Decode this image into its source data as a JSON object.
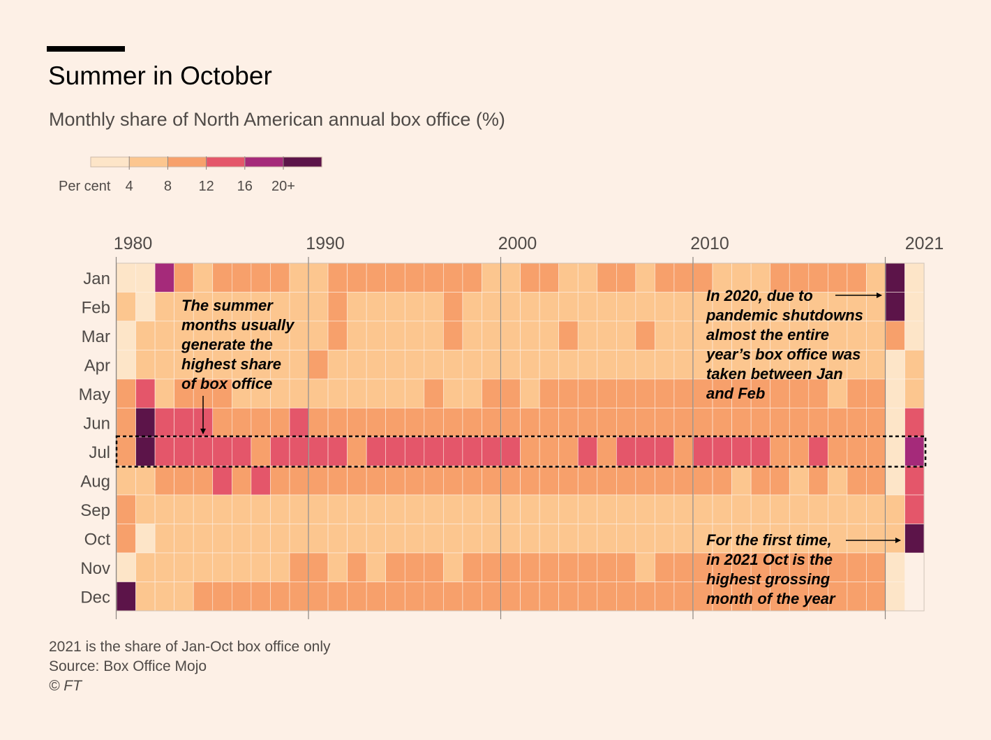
{
  "title": "Summer in October",
  "subtitle": "Monthly share of North American annual box office (%)",
  "footer": {
    "note": "2021 is the share of Jan-Oct box office only",
    "source": "Source: Box Office Mojo",
    "credit": "© FT"
  },
  "annotations": {
    "summer": "The summer\nmonths usually\ngenerate the\nhighest share\nof box office",
    "pandemic": "In 2020, due to\npandemic shutdowns\nalmost the entire\nyear’s box office was\ntaken between Jan\nand Feb",
    "october": "For the first time,\nin 2021 Oct is the\nhighest grossing\nmonth of the year"
  },
  "chart_data": {
    "type": "heatmap",
    "title": "Summer in October",
    "subtitle": "Monthly share of North American annual box office (%)",
    "legend": {
      "label": "Per cent",
      "ticks": [
        "4",
        "8",
        "12",
        "16",
        "20+"
      ],
      "bin_colors": [
        "#fde5c8",
        "#fcc68f",
        "#f7a06b",
        "#e4566a",
        "#a52a7a",
        "#5c1449"
      ],
      "placement": "top-left"
    },
    "x_tick_labels": [
      "1980",
      "1990",
      "2000",
      "2010",
      "2021"
    ],
    "x_ticks_at_years": [
      1980,
      1990,
      2000,
      2010,
      2020
    ],
    "rows": [
      "Jan",
      "Feb",
      "Mar",
      "Apr",
      "May",
      "Jun",
      "Jul",
      "Aug",
      "Sep",
      "Oct",
      "Nov",
      "Dec"
    ],
    "highlight_row": "Jul",
    "color_bin_note": "Cell values are colour bins: 0 = under 4, 1 = 4-8, 2 = 8-12, 3 = 12-16, 4 = 16-20, 5 = 20+",
    "years": [
      1980,
      1981,
      1982,
      1983,
      1984,
      1985,
      1986,
      1987,
      1988,
      1989,
      1990,
      1991,
      1992,
      1993,
      1994,
      1995,
      1996,
      1997,
      1998,
      1999,
      2000,
      2001,
      2002,
      2003,
      2004,
      2005,
      2006,
      2007,
      2008,
      2009,
      2010,
      2011,
      2012,
      2013,
      2014,
      2015,
      2016,
      2017,
      2018,
      2019,
      2020,
      2021
    ],
    "values": [
      [
        0,
        0,
        4,
        2,
        1,
        2,
        2,
        2,
        2,
        1,
        1,
        2,
        2,
        2,
        2,
        2,
        2,
        2,
        2,
        1,
        1,
        2,
        2,
        1,
        1,
        2,
        2,
        1,
        2,
        2,
        2,
        1,
        1,
        1,
        2,
        2,
        2,
        2,
        2,
        1,
        5,
        0
      ],
      [
        1,
        0,
        1,
        1,
        1,
        1,
        1,
        1,
        1,
        1,
        1,
        2,
        1,
        1,
        1,
        1,
        1,
        2,
        1,
        1,
        1,
        1,
        1,
        1,
        1,
        1,
        1,
        1,
        1,
        1,
        1,
        1,
        1,
        1,
        1,
        1,
        1,
        1,
        1,
        1,
        5,
        0
      ],
      [
        0,
        1,
        1,
        1,
        1,
        1,
        1,
        1,
        1,
        1,
        1,
        2,
        1,
        1,
        1,
        1,
        1,
        2,
        1,
        1,
        1,
        1,
        1,
        2,
        1,
        1,
        1,
        2,
        1,
        1,
        1,
        1,
        1,
        1,
        1,
        1,
        1,
        1,
        1,
        1,
        2,
        0
      ],
      [
        0,
        1,
        1,
        1,
        1,
        1,
        1,
        1,
        1,
        1,
        2,
        1,
        1,
        1,
        1,
        1,
        1,
        1,
        1,
        1,
        1,
        1,
        1,
        1,
        1,
        1,
        1,
        1,
        1,
        1,
        1,
        1,
        1,
        1,
        1,
        1,
        1,
        1,
        1,
        1,
        0,
        1
      ],
      [
        2,
        3,
        1,
        2,
        2,
        2,
        1,
        1,
        1,
        1,
        1,
        1,
        1,
        1,
        1,
        1,
        2,
        1,
        1,
        2,
        2,
        1,
        2,
        2,
        2,
        2,
        2,
        2,
        2,
        2,
        2,
        2,
        2,
        2,
        2,
        2,
        2,
        1,
        2,
        2,
        0,
        1
      ],
      [
        2,
        5,
        3,
        3,
        3,
        2,
        2,
        2,
        2,
        3,
        2,
        2,
        2,
        2,
        2,
        2,
        2,
        2,
        2,
        2,
        2,
        2,
        2,
        2,
        2,
        2,
        2,
        2,
        2,
        2,
        2,
        2,
        2,
        2,
        2,
        2,
        2,
        2,
        2,
        2,
        0,
        3
      ],
      [
        2,
        5,
        3,
        3,
        3,
        3,
        3,
        2,
        3,
        3,
        3,
        3,
        2,
        3,
        3,
        3,
        3,
        3,
        3,
        3,
        3,
        2,
        2,
        2,
        3,
        2,
        3,
        3,
        3,
        2,
        3,
        3,
        3,
        3,
        2,
        2,
        3,
        2,
        2,
        2,
        0,
        4
      ],
      [
        1,
        1,
        2,
        2,
        2,
        3,
        2,
        3,
        2,
        2,
        2,
        2,
        2,
        2,
        2,
        2,
        2,
        2,
        2,
        2,
        2,
        2,
        2,
        2,
        2,
        2,
        2,
        2,
        2,
        2,
        2,
        2,
        1,
        2,
        2,
        1,
        2,
        1,
        2,
        2,
        0,
        3
      ],
      [
        2,
        1,
        1,
        1,
        1,
        1,
        1,
        1,
        1,
        1,
        1,
        1,
        1,
        1,
        1,
        1,
        1,
        1,
        1,
        1,
        1,
        1,
        1,
        1,
        1,
        1,
        1,
        1,
        1,
        1,
        1,
        1,
        1,
        1,
        1,
        1,
        1,
        1,
        1,
        1,
        1,
        3
      ],
      [
        2,
        0,
        1,
        1,
        1,
        1,
        1,
        1,
        1,
        1,
        1,
        1,
        1,
        1,
        1,
        1,
        1,
        1,
        1,
        1,
        1,
        1,
        1,
        1,
        1,
        1,
        1,
        1,
        1,
        1,
        1,
        1,
        1,
        1,
        1,
        1,
        1,
        1,
        1,
        1,
        1,
        5
      ],
      [
        0,
        1,
        1,
        1,
        1,
        1,
        1,
        1,
        1,
        2,
        2,
        1,
        2,
        1,
        2,
        2,
        2,
        1,
        2,
        2,
        2,
        2,
        2,
        2,
        2,
        2,
        2,
        1,
        2,
        2,
        2,
        2,
        2,
        2,
        2,
        2,
        2,
        2,
        2,
        2,
        0,
        null
      ],
      [
        5,
        1,
        1,
        1,
        2,
        2,
        2,
        2,
        2,
        2,
        2,
        2,
        2,
        2,
        2,
        2,
        2,
        2,
        2,
        2,
        2,
        2,
        2,
        2,
        2,
        2,
        2,
        2,
        2,
        2,
        2,
        2,
        2,
        2,
        2,
        2,
        2,
        2,
        2,
        2,
        0,
        null
      ]
    ]
  }
}
